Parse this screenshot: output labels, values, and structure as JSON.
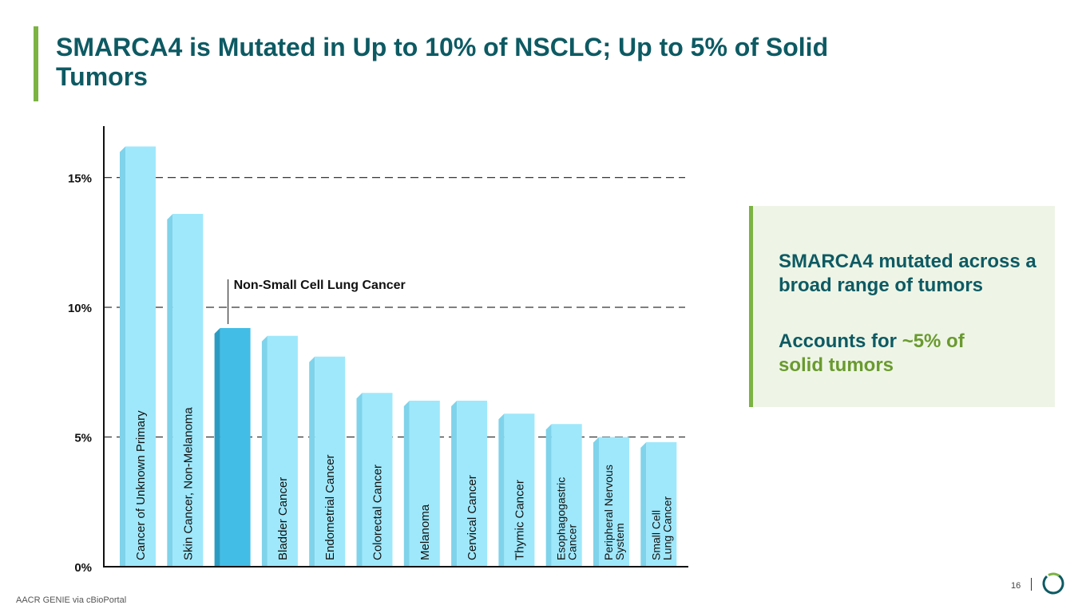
{
  "slide": {
    "title": "SMARCA4 is Mutated in Up to 10% of NSCLC; Up to 5% of Solid Tumors",
    "source": "AACR GENIE via cBioPortal",
    "page_number": "16"
  },
  "callout": {
    "line1": "SMARCA4 mutated across a broad range of tumors",
    "line2_prefix": "Accounts for ",
    "line2_highlight": "~5% of",
    "line2_suffix": "solid tumors"
  },
  "colors": {
    "title": "#0d5a63",
    "accent_green": "#7cb342",
    "bar": "#9fe8fb",
    "bar_highlight": "#42bde6",
    "callout_bg": "#eef5e6"
  },
  "chart_data": {
    "type": "bar",
    "categories": [
      "Cancer of Unknown Primary",
      "Skin Cancer, Non-Melanoma",
      "Non-Small Cell Lung Cancer",
      "Bladder Cancer",
      "Endometrial Cancer",
      "Colorectal Cancer",
      "Melanoma",
      "Cervical Cancer",
      "Thymic Cancer",
      "Esophagogastric Cancer",
      "Peripheral Nervous System",
      "Small Cell Lung Cancer"
    ],
    "bar_labels": [
      [
        "Cancer of Unknown Primary"
      ],
      [
        "Skin Cancer, Non-Melanoma"
      ],
      [],
      [
        "Bladder Cancer"
      ],
      [
        "Endometrial Cancer"
      ],
      [
        "Colorectal Cancer"
      ],
      [
        "Melanoma"
      ],
      [
        "Cervical Cancer"
      ],
      [
        "Thymic Cancer"
      ],
      [
        "Esophagogastric",
        "Cancer"
      ],
      [
        "Peripheral Nervous",
        "System"
      ],
      [
        "Small Cell",
        "Lung Cancer"
      ]
    ],
    "values": [
      16.2,
      13.6,
      9.2,
      8.9,
      8.1,
      6.7,
      6.4,
      6.4,
      5.9,
      5.5,
      5.0,
      4.8
    ],
    "highlight_index": 2,
    "annotation": "Non-Small Cell Lung Cancer",
    "ylim": [
      0,
      17
    ],
    "yticks": [
      0,
      5,
      10,
      15
    ],
    "ytick_labels": [
      "0%",
      "5%",
      "10%",
      "15%"
    ],
    "grid": "dashed horizontal at 5%, 10%, 15%",
    "xlabel": "",
    "ylabel": ""
  }
}
